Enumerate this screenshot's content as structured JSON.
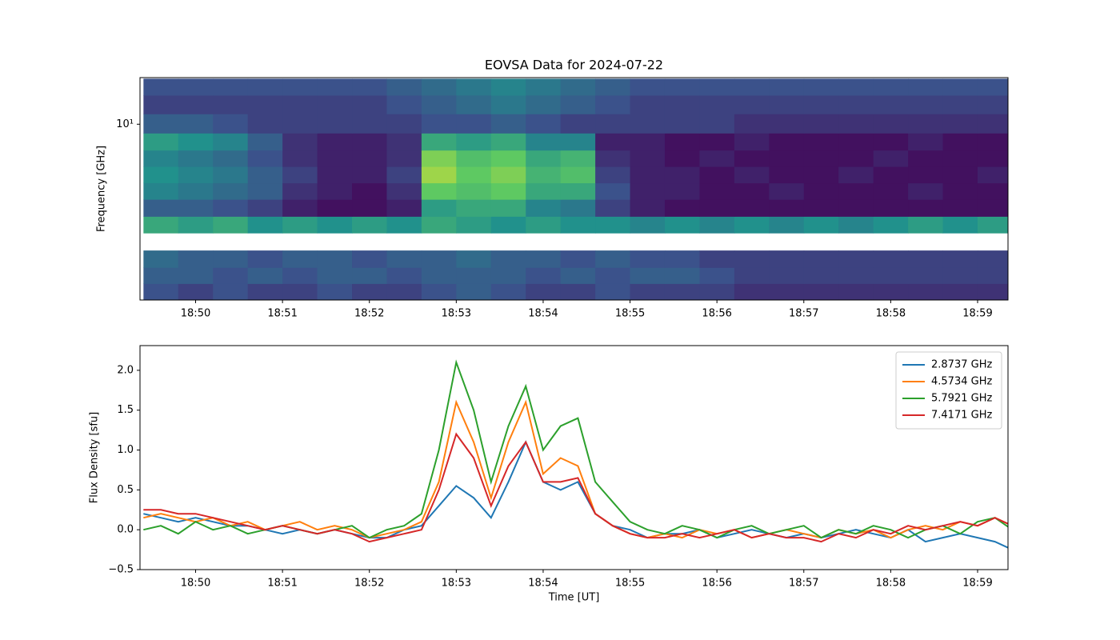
{
  "chart_data": [
    {
      "type": "heatmap",
      "title": "EOVSA Data for 2024-07-22",
      "y_label": "Frequency [GHz]",
      "colormap": "viridis",
      "zlim": [
        0,
        1
      ],
      "ylog": true,
      "xlim": [
        49.36,
        59.35
      ],
      "xticks": [
        {
          "value": 50,
          "label": "18:50"
        },
        {
          "value": 51,
          "label": "18:51"
        },
        {
          "value": 52,
          "label": "18:52"
        },
        {
          "value": 53,
          "label": "18:53"
        },
        {
          "value": 54,
          "label": "18:54"
        },
        {
          "value": 55,
          "label": "18:55"
        },
        {
          "value": 56,
          "label": "18:56"
        },
        {
          "value": 57,
          "label": "18:57"
        },
        {
          "value": 58,
          "label": "18:58"
        },
        {
          "value": 59,
          "label": "18:59"
        }
      ],
      "ylim": [
        1.09,
        18
      ],
      "yticks": [
        {
          "value": 10,
          "label": "10¹"
        }
      ],
      "x": [
        49.6,
        50,
        50.4,
        50.8,
        51.2,
        51.6,
        52,
        52.4,
        52.8,
        53.2,
        53.6,
        54,
        54.4,
        54.8,
        55.2,
        55.6,
        56,
        56.4,
        56.8,
        57.2,
        57.6,
        58,
        58.4,
        58.8,
        59.2
      ],
      "y": [
        1.2,
        1.5,
        1.8,
        2.3,
        2.8,
        3.5,
        4.3,
        5.3,
        6.5,
        8,
        10,
        13,
        16
      ],
      "z": [
        [
          0.25,
          0.2,
          0.25,
          0.2,
          0.2,
          0.25,
          0.2,
          0.2,
          0.25,
          0.3,
          0.25,
          0.2,
          0.2,
          0.25,
          0.2,
          0.2,
          0.2,
          0.15,
          0.15,
          0.15,
          0.15,
          0.15,
          0.15,
          0.15,
          0.15
        ],
        [
          0.3,
          0.3,
          0.25,
          0.3,
          0.25,
          0.3,
          0.3,
          0.25,
          0.3,
          0.3,
          0.3,
          0.25,
          0.3,
          0.25,
          0.3,
          0.3,
          0.25,
          0.2,
          0.2,
          0.2,
          0.2,
          0.2,
          0.2,
          0.2,
          0.2
        ],
        [
          0.35,
          0.3,
          0.3,
          0.25,
          0.3,
          0.3,
          0.25,
          0.3,
          0.3,
          0.35,
          0.3,
          0.3,
          0.25,
          0.3,
          0.25,
          0.25,
          0.2,
          0.2,
          0.2,
          0.2,
          0.2,
          0.2,
          0.2,
          0.2,
          0.2
        ],
        [
          null,
          null,
          null,
          null,
          null,
          null,
          null,
          null,
          null,
          null,
          null,
          null,
          null,
          null,
          null,
          null,
          null,
          null,
          null,
          null,
          null,
          null,
          null,
          null,
          null
        ],
        [
          0.6,
          0.55,
          0.6,
          0.5,
          0.55,
          0.5,
          0.55,
          0.5,
          0.6,
          0.55,
          0.5,
          0.55,
          0.5,
          0.5,
          0.45,
          0.5,
          0.45,
          0.5,
          0.45,
          0.5,
          0.45,
          0.5,
          0.55,
          0.5,
          0.55
        ],
        [
          0.3,
          0.3,
          0.25,
          0.2,
          0.1,
          0.05,
          0.05,
          0.1,
          0.55,
          0.6,
          0.6,
          0.45,
          0.4,
          0.2,
          0.1,
          0.05,
          0.05,
          0.05,
          0.05,
          0.05,
          0.05,
          0.05,
          0.05,
          0.05,
          0.05
        ],
        [
          0.45,
          0.4,
          0.35,
          0.3,
          0.15,
          0.1,
          0.05,
          0.15,
          0.75,
          0.7,
          0.75,
          0.6,
          0.6,
          0.25,
          0.1,
          0.1,
          0.05,
          0.05,
          0.1,
          0.05,
          0.05,
          0.05,
          0.1,
          0.05,
          0.05
        ],
        [
          0.5,
          0.45,
          0.4,
          0.3,
          0.2,
          0.1,
          0.1,
          0.2,
          0.85,
          0.75,
          0.8,
          0.65,
          0.7,
          0.2,
          0.1,
          0.1,
          0.05,
          0.1,
          0.05,
          0.05,
          0.1,
          0.05,
          0.05,
          0.05,
          0.1
        ],
        [
          0.45,
          0.4,
          0.35,
          0.25,
          0.15,
          0.1,
          0.1,
          0.15,
          0.8,
          0.7,
          0.75,
          0.6,
          0.65,
          0.15,
          0.1,
          0.05,
          0.1,
          0.05,
          0.05,
          0.05,
          0.05,
          0.1,
          0.05,
          0.05,
          0.05
        ],
        [
          0.55,
          0.5,
          0.45,
          0.3,
          0.15,
          0.1,
          0.1,
          0.15,
          0.6,
          0.55,
          0.6,
          0.45,
          0.45,
          0.1,
          0.1,
          0.05,
          0.05,
          0.1,
          0.05,
          0.05,
          0.05,
          0.05,
          0.1,
          0.05,
          0.05
        ],
        [
          0.3,
          0.3,
          0.25,
          0.2,
          0.2,
          0.2,
          0.2,
          0.2,
          0.25,
          0.25,
          0.3,
          0.25,
          0.2,
          0.2,
          0.2,
          0.2,
          0.2,
          0.15,
          0.15,
          0.15,
          0.15,
          0.15,
          0.15,
          0.15,
          0.15
        ],
        [
          0.2,
          0.2,
          0.2,
          0.2,
          0.2,
          0.2,
          0.2,
          0.25,
          0.3,
          0.35,
          0.4,
          0.35,
          0.3,
          0.25,
          0.2,
          0.2,
          0.2,
          0.2,
          0.2,
          0.2,
          0.2,
          0.2,
          0.2,
          0.2,
          0.2
        ],
        [
          0.25,
          0.25,
          0.25,
          0.25,
          0.25,
          0.25,
          0.25,
          0.3,
          0.35,
          0.4,
          0.45,
          0.4,
          0.35,
          0.3,
          0.25,
          0.25,
          0.25,
          0.25,
          0.25,
          0.25,
          0.25,
          0.25,
          0.25,
          0.25,
          0.25
        ]
      ]
    },
    {
      "type": "line",
      "x_label": "Time [UT]",
      "y_label": "Flux Density [sfu]",
      "legend": "upper right",
      "xlim": [
        49.36,
        59.35
      ],
      "xticks": [
        {
          "value": 50,
          "label": "18:50"
        },
        {
          "value": 51,
          "label": "18:51"
        },
        {
          "value": 52,
          "label": "18:52"
        },
        {
          "value": 53,
          "label": "18:53"
        },
        {
          "value": 54,
          "label": "18:54"
        },
        {
          "value": 55,
          "label": "18:55"
        },
        {
          "value": 56,
          "label": "18:56"
        },
        {
          "value": 57,
          "label": "18:57"
        },
        {
          "value": 58,
          "label": "18:58"
        },
        {
          "value": 59,
          "label": "18:59"
        }
      ],
      "ylim": [
        -0.5,
        2.31
      ],
      "yticks": [
        {
          "value": -0.5,
          "label": "−0.5"
        },
        {
          "value": 0,
          "label": "0.0"
        },
        {
          "value": 0.5,
          "label": "0.5"
        },
        {
          "value": 1,
          "label": "1.0"
        },
        {
          "value": 1.5,
          "label": "1.5"
        },
        {
          "value": 2,
          "label": "2.0"
        }
      ],
      "x": [
        49.4,
        49.6,
        49.8,
        50,
        50.2,
        50.4,
        50.6,
        50.8,
        51,
        51.2,
        51.4,
        51.6,
        51.8,
        52,
        52.2,
        52.4,
        52.6,
        52.8,
        53,
        53.2,
        53.4,
        53.6,
        53.8,
        54,
        54.2,
        54.4,
        54.6,
        54.8,
        55,
        55.2,
        55.4,
        55.6,
        55.8,
        56,
        56.2,
        56.4,
        56.6,
        56.8,
        57,
        57.2,
        57.4,
        57.6,
        57.8,
        58,
        58.2,
        58.4,
        58.6,
        58.8,
        59,
        59.2,
        59.4
      ],
      "series": [
        {
          "name": "2.8737 GHz",
          "color": "#1f77b4",
          "values": [
            0.2,
            0.15,
            0.1,
            0.15,
            0.1,
            0.05,
            0.05,
            0.0,
            -0.05,
            0.0,
            -0.05,
            0.0,
            -0.05,
            -0.1,
            -0.1,
            0.0,
            0.05,
            0.3,
            0.55,
            0.4,
            0.15,
            0.6,
            1.1,
            0.6,
            0.5,
            0.6,
            0.2,
            0.05,
            0.0,
            -0.1,
            -0.05,
            -0.05,
            0.0,
            -0.1,
            -0.05,
            0.0,
            -0.05,
            -0.1,
            -0.05,
            -0.1,
            -0.05,
            0.0,
            -0.05,
            -0.1,
            0.0,
            -0.15,
            -0.1,
            -0.05,
            -0.1,
            -0.15,
            -0.25
          ]
        },
        {
          "name": "4.5734 GHz",
          "color": "#ff7f0e",
          "values": [
            0.15,
            0.2,
            0.15,
            0.1,
            0.15,
            0.05,
            0.1,
            0.0,
            0.05,
            0.1,
            0.0,
            0.05,
            0.0,
            -0.1,
            -0.05,
            0.0,
            0.1,
            0.6,
            1.6,
            1.1,
            0.4,
            1.1,
            1.6,
            0.7,
            0.9,
            0.8,
            0.2,
            0.05,
            -0.05,
            -0.1,
            -0.05,
            -0.1,
            0.0,
            -0.05,
            0.0,
            -0.1,
            -0.05,
            0.0,
            -0.05,
            -0.1,
            0.0,
            -0.05,
            0.0,
            -0.1,
            0.0,
            0.05,
            0.0,
            0.1,
            0.05,
            0.15,
            0.05
          ]
        },
        {
          "name": "5.7921 GHz",
          "color": "#2ca02c",
          "values": [
            0.0,
            0.05,
            -0.05,
            0.1,
            0.0,
            0.05,
            -0.05,
            0.0,
            0.05,
            0.0,
            -0.05,
            0.0,
            0.05,
            -0.1,
            0.0,
            0.05,
            0.2,
            1.0,
            2.1,
            1.5,
            0.6,
            1.3,
            1.8,
            1.0,
            1.3,
            1.4,
            0.6,
            0.35,
            0.1,
            0.0,
            -0.05,
            0.05,
            0.0,
            -0.1,
            0.0,
            0.05,
            -0.05,
            0.0,
            0.05,
            -0.1,
            0.0,
            -0.05,
            0.05,
            0.0,
            -0.1,
            0.0,
            0.05,
            -0.05,
            0.1,
            0.15,
            0.0
          ]
        },
        {
          "name": "7.4171 GHz",
          "color": "#d62728",
          "values": [
            0.25,
            0.25,
            0.2,
            0.2,
            0.15,
            0.1,
            0.05,
            0.0,
            0.05,
            0.0,
            -0.05,
            0.0,
            -0.05,
            -0.15,
            -0.1,
            -0.05,
            0.0,
            0.5,
            1.2,
            0.9,
            0.3,
            0.8,
            1.1,
            0.6,
            0.6,
            0.65,
            0.2,
            0.05,
            -0.05,
            -0.1,
            -0.1,
            -0.05,
            -0.1,
            -0.05,
            0.0,
            -0.1,
            -0.05,
            -0.1,
            -0.1,
            -0.15,
            -0.05,
            -0.1,
            0.0,
            -0.05,
            0.05,
            0.0,
            0.05,
            0.1,
            0.05,
            0.15,
            0.05
          ]
        }
      ]
    }
  ]
}
